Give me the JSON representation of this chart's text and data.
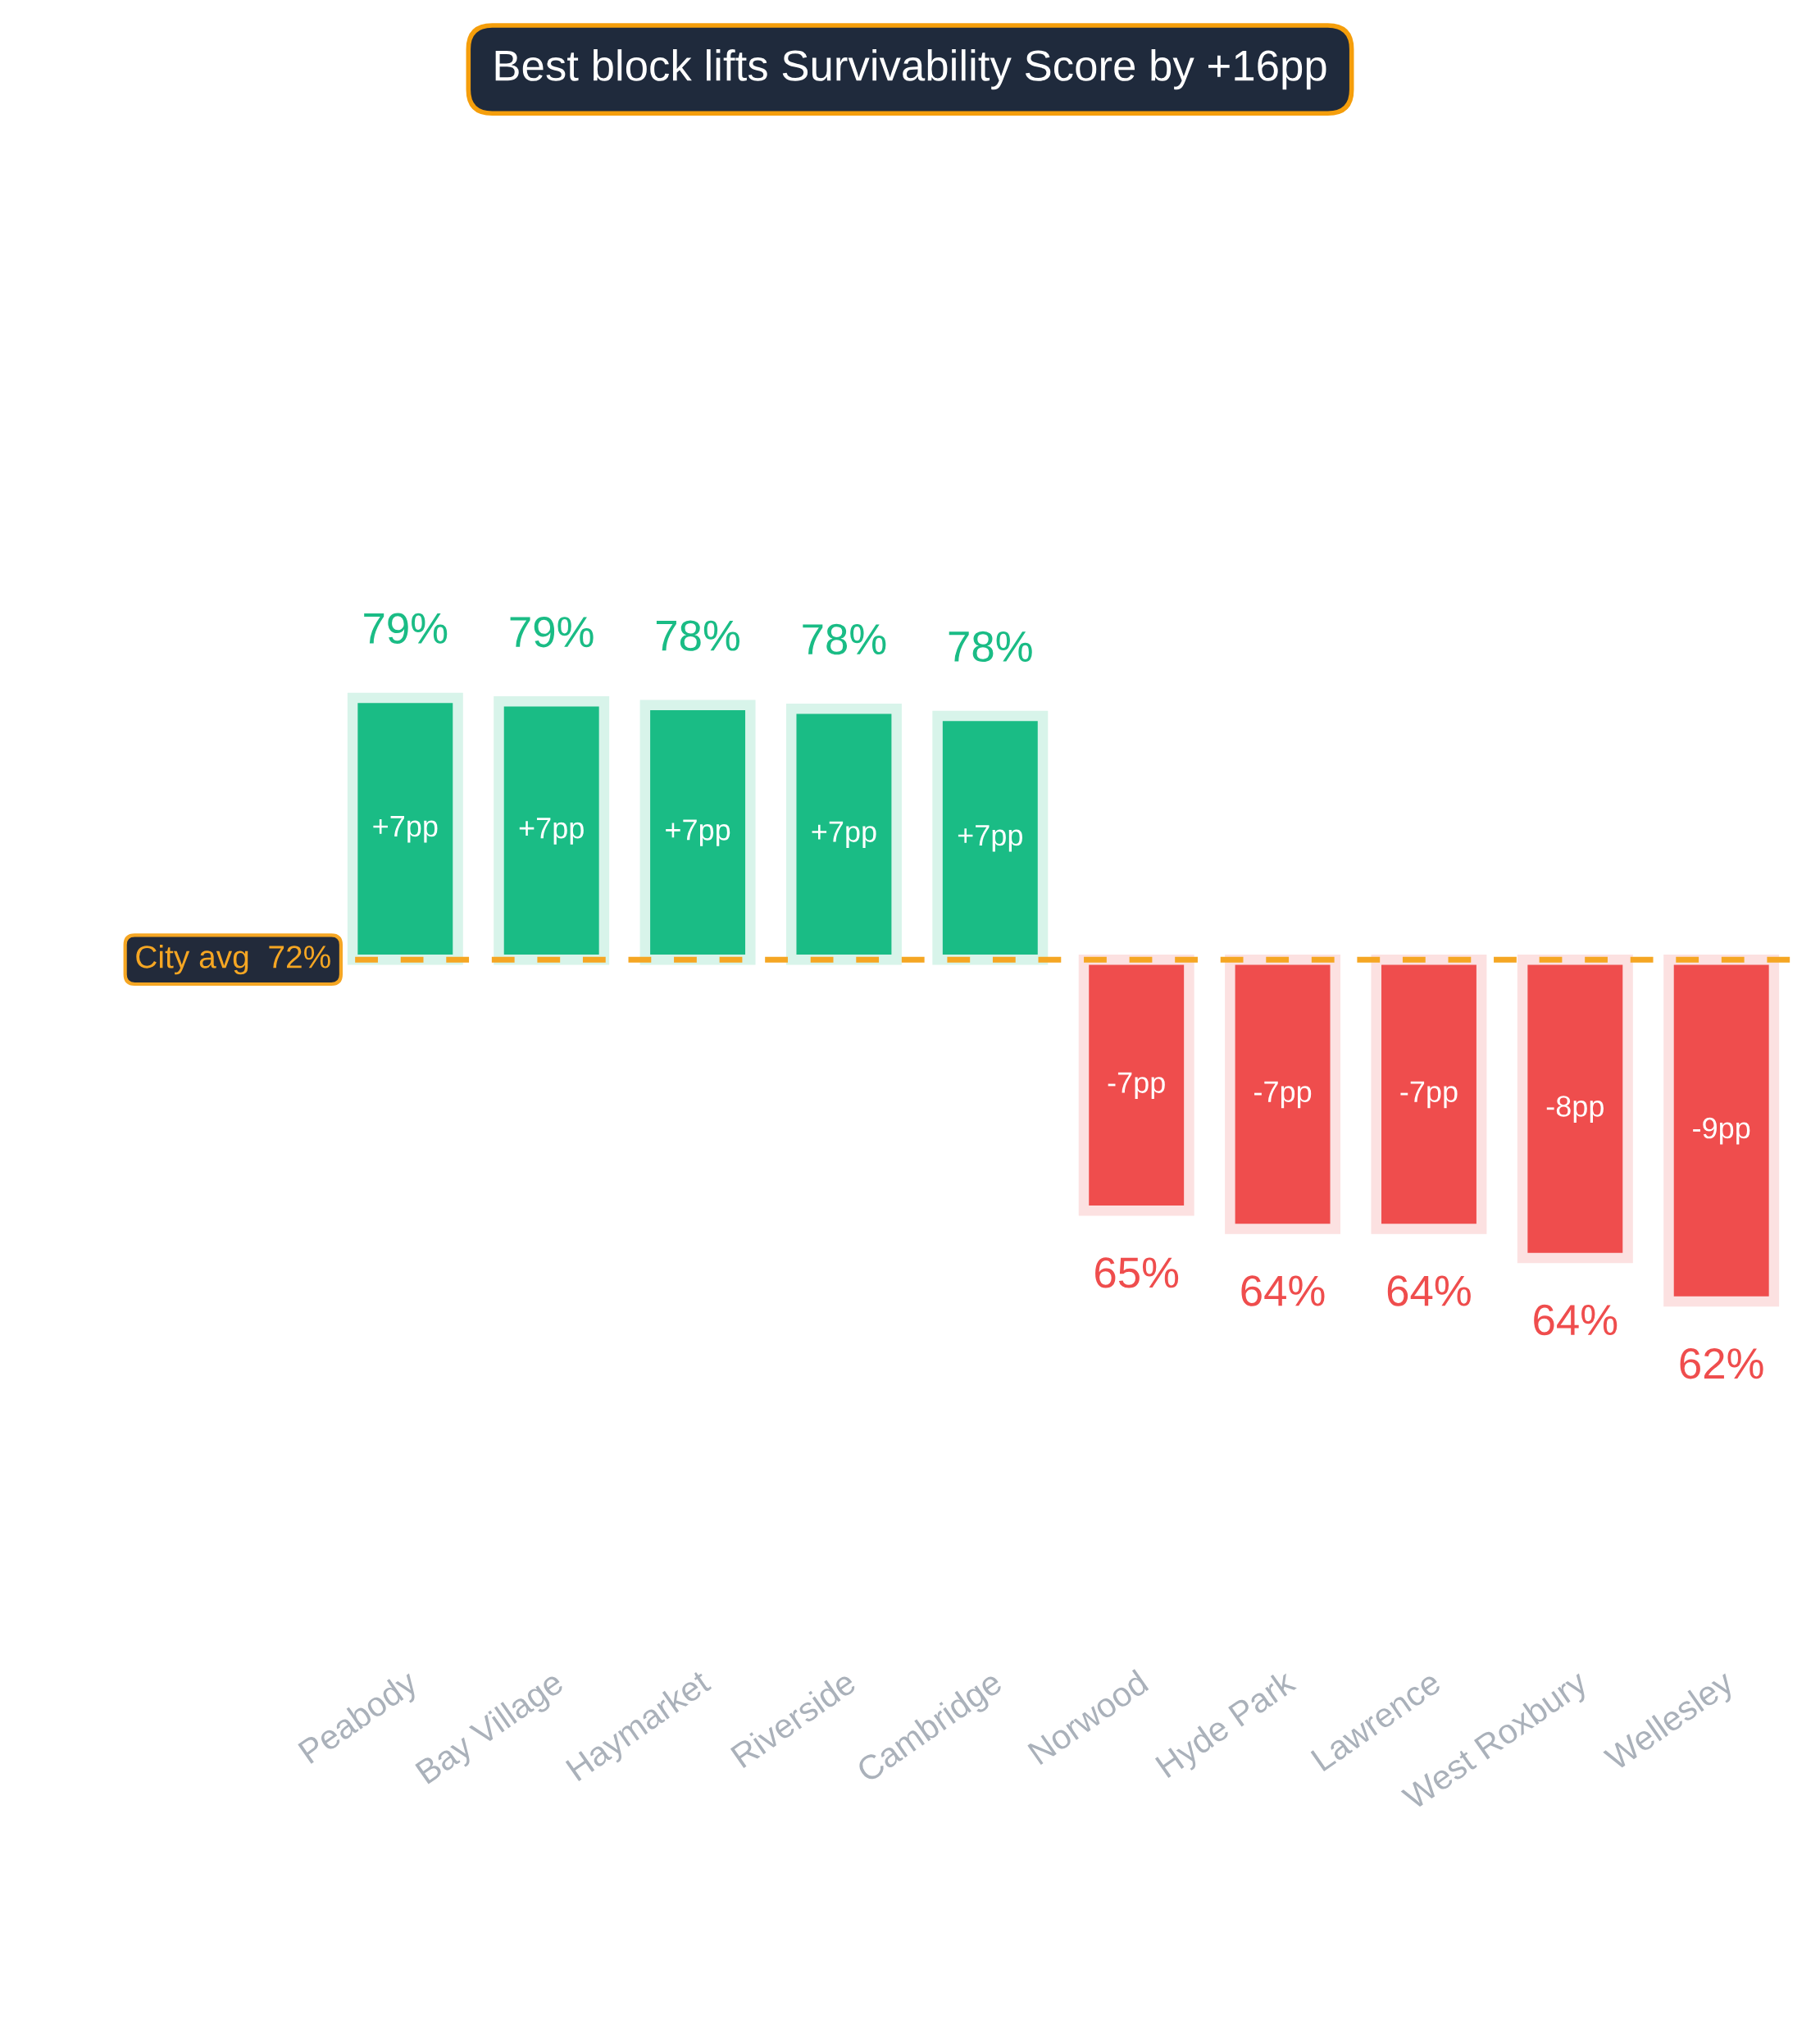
{
  "chart_data": {
    "type": "bar",
    "title": "Best block lifts Survivability Score by +16pp",
    "categories": [
      "Peabody",
      "Bay Village",
      "Haymarket",
      "Riverside",
      "Cambridge",
      "Norwood",
      "Hyde Park",
      "Lawrence",
      "West Roxbury",
      "Wellesley"
    ],
    "values": [
      7.2,
      7.1,
      7.0,
      6.9,
      6.7,
      -6.9,
      -7.4,
      -7.4,
      -8.2,
      -9.4
    ],
    "colors": [
      "#1abc85",
      "#1abc85",
      "#1abc85",
      "#1abc85",
      "#1abc85",
      "#ef4d4d",
      "#ef4d4d",
      "#ef4d4d",
      "#ef4d4d",
      "#ef4d4d"
    ],
    "value_labels": [
      "+7pp",
      "+7pp",
      "+7pp",
      "+7pp",
      "+7pp",
      "-7pp",
      "-7pp",
      "-7pp",
      "-8pp",
      "-9pp"
    ],
    "annotations": [
      "79%",
      "79%",
      "78%",
      "78%",
      "78%",
      "65%",
      "64%",
      "64%",
      "64%",
      "62%"
    ],
    "ref_lines": [
      {
        "axis": "y",
        "value": 0,
        "label": "City avg  72%",
        "color": "#f5a623",
        "line_style": "dashed"
      }
    ],
    "grid": false,
    "legend": false
  }
}
